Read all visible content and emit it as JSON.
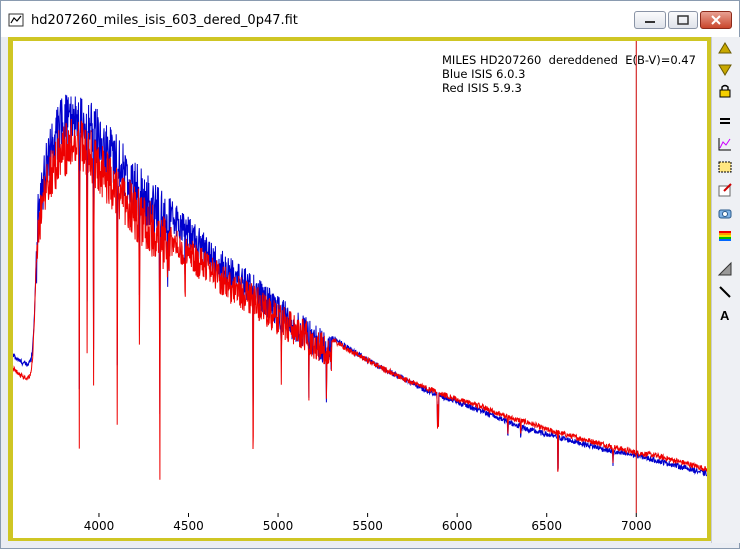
{
  "window": {
    "title": "hd207260_miles_isis_603_dered_0p47.fit"
  },
  "annotations": [
    "MILES HD207260  dereddened  E(B-V)=0.47",
    "Blue ISIS 6.0.3",
    "Red ISIS 5.9.3"
  ],
  "colors": {
    "blue": "#0000cc",
    "red": "#ee0000",
    "cursor": "#cc0000",
    "frame": "#cfc624"
  },
  "toolbar": [
    "nav-up-icon",
    "nav-down-icon",
    "lock-icon",
    "equal-icon",
    "plot-icon",
    "select-box-icon",
    "edit-icon",
    "camera-icon",
    "rainbow-icon",
    "gradient-icon",
    "line-icon",
    "text-icon"
  ],
  "chart_data": {
    "type": "line",
    "xlim": [
      3520,
      7395
    ],
    "ylim": [
      0,
      1.02
    ],
    "xticks": [
      "4000",
      "4500",
      "5000",
      "5500",
      "6000",
      "6500",
      "7000"
    ],
    "cursor_x": 7000,
    "series": [
      {
        "color": "blue",
        "x": [
          3525,
          3550,
          3600,
          3620,
          3630,
          3640,
          3650,
          3660,
          3680,
          3700,
          3720,
          3750,
          3780,
          3800,
          3850,
          3900,
          3950,
          4000,
          4050,
          4100,
          4150,
          4200,
          4250,
          4300,
          4350,
          4400,
          4450,
          4500,
          4550,
          4600,
          4650,
          4700,
          4750,
          4800,
          4850,
          4900,
          4950,
          5000,
          5100,
          5200,
          5300,
          5400,
          5500,
          5600,
          5700,
          5800,
          5900,
          6000,
          6100,
          6200,
          6300,
          6400,
          6500,
          6600,
          6700,
          6800,
          6900,
          7000,
          7100,
          7200,
          7300,
          7390
        ],
        "y": [
          0.34,
          0.33,
          0.32,
          0.33,
          0.36,
          0.43,
          0.56,
          0.7,
          0.75,
          0.8,
          0.82,
          0.86,
          0.89,
          0.9,
          0.92,
          0.91,
          0.89,
          0.87,
          0.84,
          0.82,
          0.79,
          0.76,
          0.74,
          0.72,
          0.7,
          0.68,
          0.66,
          0.64,
          0.62,
          0.6,
          0.58,
          0.565,
          0.55,
          0.535,
          0.52,
          0.505,
          0.49,
          0.47,
          0.44,
          0.41,
          0.38,
          0.355,
          0.33,
          0.31,
          0.29,
          0.27,
          0.255,
          0.24,
          0.225,
          0.21,
          0.195,
          0.18,
          0.17,
          0.16,
          0.15,
          0.14,
          0.13,
          0.125,
          0.115,
          0.105,
          0.095,
          0.085
        ]
      },
      {
        "color": "red",
        "x": [
          3525,
          3550,
          3600,
          3620,
          3630,
          3640,
          3650,
          3660,
          3680,
          3700,
          3720,
          3750,
          3780,
          3800,
          3850,
          3900,
          3950,
          4000,
          4050,
          4100,
          4150,
          4200,
          4250,
          4300,
          4350,
          4400,
          4450,
          4500,
          4550,
          4600,
          4650,
          4700,
          4750,
          4800,
          4850,
          4900,
          4950,
          5000,
          5100,
          5200,
          5300,
          5400,
          5500,
          5600,
          5700,
          5800,
          5900,
          6000,
          6100,
          6200,
          6300,
          6400,
          6500,
          6600,
          6700,
          6800,
          6900,
          7000,
          7100,
          7200,
          7300,
          7390
        ],
        "y": [
          0.31,
          0.3,
          0.29,
          0.3,
          0.34,
          0.42,
          0.55,
          0.67,
          0.71,
          0.76,
          0.78,
          0.81,
          0.83,
          0.84,
          0.86,
          0.85,
          0.83,
          0.81,
          0.78,
          0.76,
          0.73,
          0.71,
          0.69,
          0.67,
          0.65,
          0.63,
          0.61,
          0.6,
          0.58,
          0.565,
          0.55,
          0.535,
          0.52,
          0.51,
          0.5,
          0.485,
          0.47,
          0.455,
          0.43,
          0.405,
          0.375,
          0.35,
          0.33,
          0.31,
          0.29,
          0.275,
          0.26,
          0.245,
          0.235,
          0.22,
          0.205,
          0.195,
          0.18,
          0.17,
          0.16,
          0.15,
          0.14,
          0.13,
          0.125,
          0.115,
          0.105,
          0.095
        ]
      }
    ],
    "absorption_lines": [
      {
        "x": 3890,
        "depth": 0.62
      },
      {
        "x": 3934,
        "depth": 0.45
      },
      {
        "x": 3970,
        "depth": 0.5
      },
      {
        "x": 4102,
        "depth": 0.55
      },
      {
        "x": 4226,
        "depth": 0.25
      },
      {
        "x": 4340,
        "depth": 0.48
      },
      {
        "x": 4383,
        "depth": 0.15
      },
      {
        "x": 4481,
        "depth": 0.12
      },
      {
        "x": 4861,
        "depth": 0.44
      },
      {
        "x": 5018,
        "depth": 0.12
      },
      {
        "x": 5172,
        "depth": 0.14
      },
      {
        "x": 5270,
        "depth": 0.1
      },
      {
        "x": 5895,
        "depth": 0.11
      },
      {
        "x": 5890,
        "depth": 0.08
      },
      {
        "x": 6283,
        "depth": 0.05
      },
      {
        "x": 6355,
        "depth": 0.04
      },
      {
        "x": 6563,
        "depth": 0.12
      },
      {
        "x": 6870,
        "depth": 0.04
      }
    ]
  }
}
